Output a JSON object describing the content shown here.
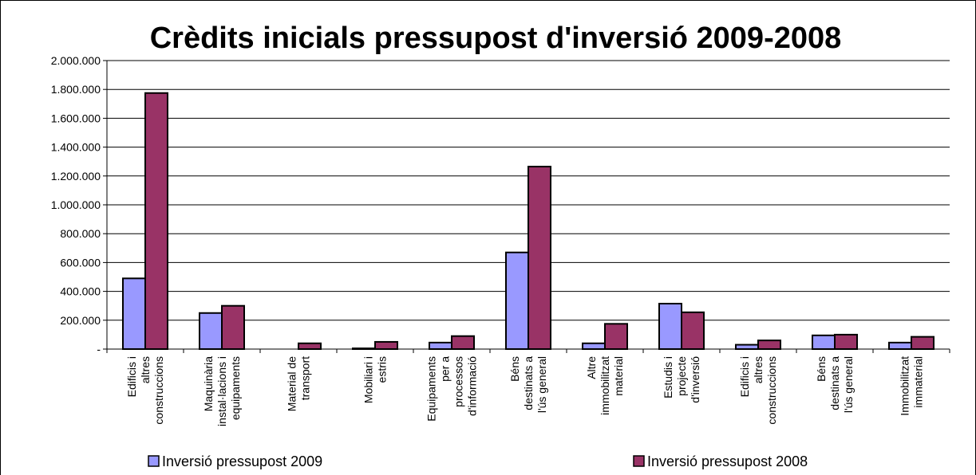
{
  "chart_data": {
    "type": "bar",
    "title": "Crèdits inicials pressupost d'inversió 2009-2008",
    "xlabel": "",
    "ylabel": "",
    "ylim": [
      0,
      2000000
    ],
    "yticks": [
      0,
      200000,
      400000,
      600000,
      800000,
      1000000,
      1200000,
      1400000,
      1600000,
      1800000,
      2000000
    ],
    "ytick_labels": [
      "-",
      "200.000",
      "400.000",
      "600.000",
      "800.000",
      "1.000.000",
      "1.200.000",
      "1.400.000",
      "1.600.000",
      "1.800.000",
      "2.000.000"
    ],
    "grid": true,
    "legend_position": "bottom",
    "categories": [
      [
        "Edificis i",
        "altres",
        "construccions"
      ],
      [
        "Maquinària",
        "instal·lacions i",
        "equipaments"
      ],
      [
        "Material de",
        "transport"
      ],
      [
        "Mobiliari i",
        "estris"
      ],
      [
        "Equipaments",
        "per a",
        "processos",
        "d'informació"
      ],
      [
        "Béns",
        "destinats a",
        "l'ús general"
      ],
      [
        "Altre",
        "immobilitzat",
        "material"
      ],
      [
        "Estudis i",
        "projecte",
        "d'inversió"
      ],
      [
        "Edificis i",
        "altres",
        "construccions"
      ],
      [
        "Béns",
        "destinats a",
        "l'ús general"
      ],
      [
        "Immobilitzat",
        "immaterial"
      ]
    ],
    "series": [
      {
        "name": "Inversió pressupost 2009",
        "color": "#9999ff",
        "values": [
          490000,
          250000,
          0,
          5000,
          45000,
          670000,
          40000,
          315000,
          30000,
          95000,
          45000
        ]
      },
      {
        "name": "Inversió pressupost 2008",
        "color": "#993366",
        "values": [
          1775000,
          300000,
          40000,
          50000,
          90000,
          1265000,
          175000,
          255000,
          60000,
          100000,
          85000
        ]
      }
    ]
  }
}
